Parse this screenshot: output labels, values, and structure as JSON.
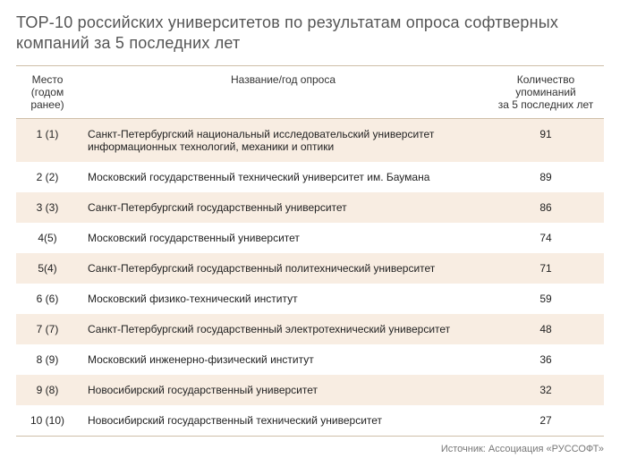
{
  "title": "ТОР-10 российских университетов по результатам опроса софтверных компаний за 5 последних лет",
  "columns": {
    "rank": "Место\n(годом\nранее)",
    "name": "Название/год опроса",
    "count": "Количество\nупоминаний\nза 5 последних лет"
  },
  "rows": [
    {
      "rank": "1 (1)",
      "name": "Санкт-Петербургский национальный исследовательский университет информационных технологий, механики и оптики",
      "count": "91"
    },
    {
      "rank": "2 (2)",
      "name": "Московский государственный технический университет им. Баумана",
      "count": "89"
    },
    {
      "rank": "3 (3)",
      "name": "Санкт-Петербургский государственный университет",
      "count": "86"
    },
    {
      "rank": "4(5)",
      "name": "Московский государственный университет",
      "count": "74"
    },
    {
      "rank": "5(4)",
      "name": "Санкт-Петербургский государственный политехнический университет",
      "count": "71"
    },
    {
      "rank": "6 (6)",
      "name": "Московский физико-технический институт",
      "count": "59"
    },
    {
      "rank": "7 (7)",
      "name": "Санкт-Петербургский государственный электротехнический университет",
      "count": "48"
    },
    {
      "rank": "8 (9)",
      "name": "Московский инженерно-физический институт",
      "count": "36"
    },
    {
      "rank": "9 (8)",
      "name": "Новосибирский государственный университет",
      "count": "32"
    },
    {
      "rank": "10 (10)",
      "name": "Новосибирский государственный технический университет",
      "count": "27"
    }
  ],
  "source": "Источник: Ассоциация «РУССОФТ»",
  "style": {
    "type": "table",
    "row_alt_bg": "#f8ede2",
    "row_bg": "#ffffff",
    "border_color": "#cfbfa8",
    "title_color": "#555555",
    "title_fontsize": 18,
    "body_fontsize": 12,
    "source_fontsize": 11,
    "source_color": "#777777"
  }
}
